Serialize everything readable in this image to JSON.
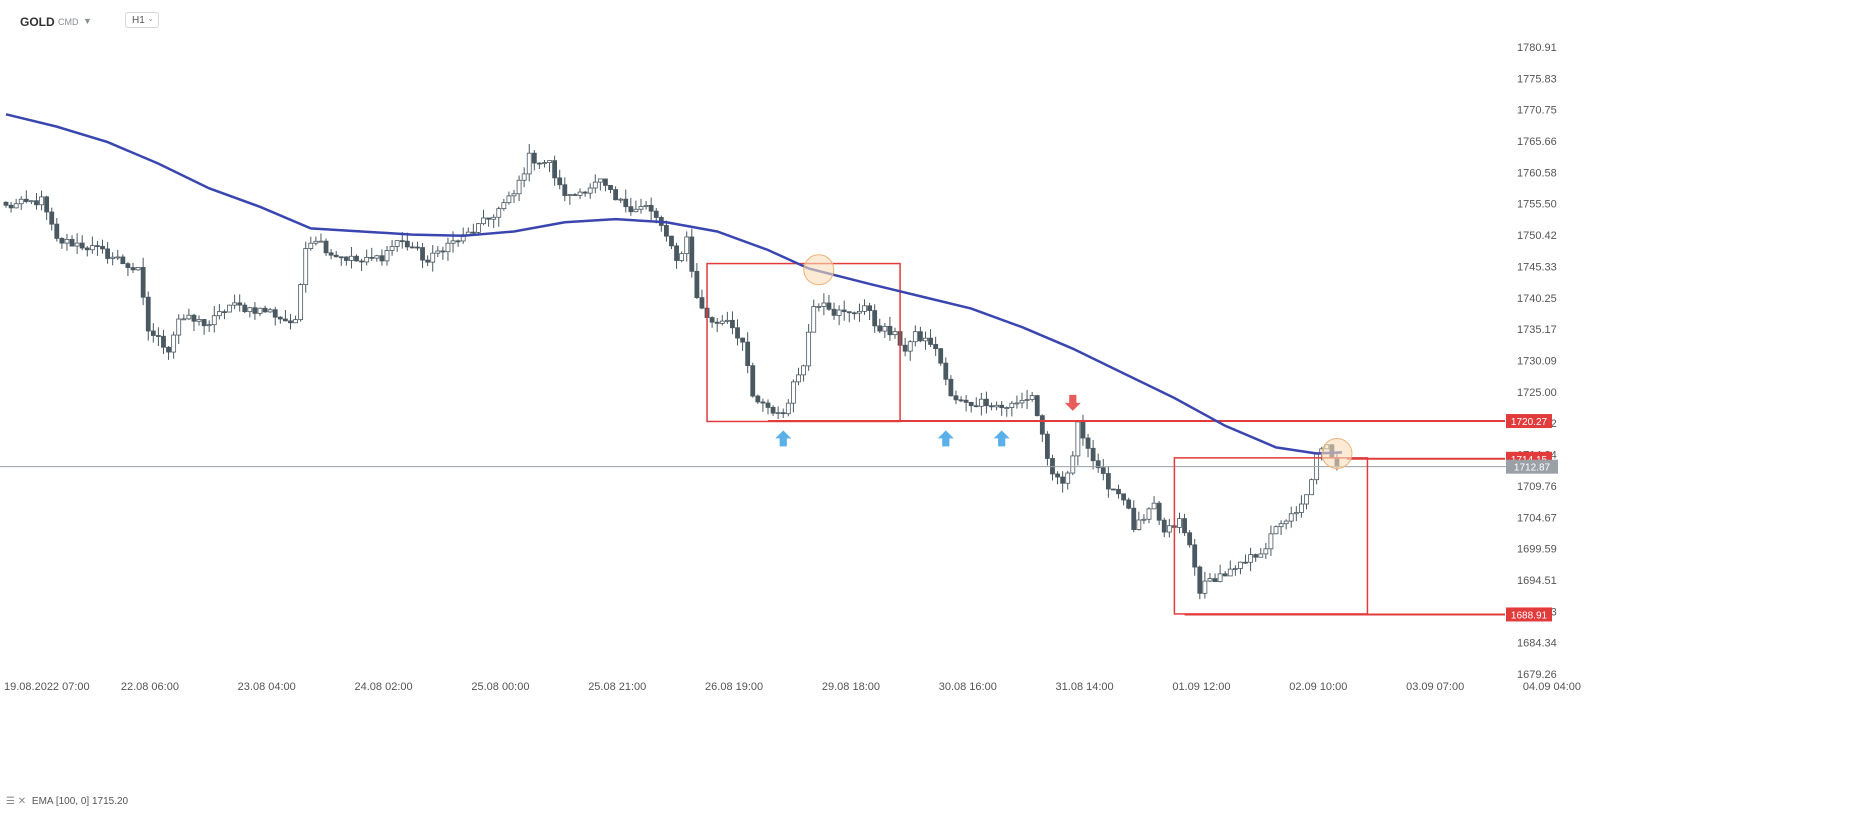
{
  "header": {
    "symbol": "GOLD",
    "market": "CMD",
    "timeframe": "H1"
  },
  "indicator_legend": {
    "label": "EMA",
    "params": "[100, 0]",
    "value": "1715.20"
  },
  "chart_data": {
    "type": "candlestick",
    "ylim": [
      1678.0,
      1782.5
    ],
    "y_ticks": [
      "1780.91",
      "1775.83",
      "1770.75",
      "1765.66",
      "1760.58",
      "1755.50",
      "1750.42",
      "1745.33",
      "1740.25",
      "1735.17",
      "1730.09",
      "1725.00",
      "1719.92",
      "1714.84",
      "1709.76",
      "1704.67",
      "1699.59",
      "1694.51",
      "1689.43",
      "1684.34",
      "1679.26"
    ],
    "x_ticks": [
      "19.08.2022  07:00",
      "22.08  06:00",
      "23.08  04:00",
      "24.08  02:00",
      "25.08  00:00",
      "25.08  21:00",
      "26.08  19:00",
      "29.08  18:00",
      "30.08  16:00",
      "31.08  14:00",
      "01.09  12:00",
      "02.09  10:00",
      "03.09  07:00",
      "04.09  04:00"
    ],
    "x_tick_index": [
      0,
      23,
      46,
      69,
      92,
      115,
      138,
      161,
      184,
      207,
      230,
      253,
      276,
      299
    ],
    "waypoints": [
      [
        0,
        1755.0
      ],
      [
        7,
        1756.0
      ],
      [
        10,
        1749.5
      ],
      [
        14,
        1749.0
      ],
      [
        18,
        1748.0
      ],
      [
        22,
        1746.5
      ],
      [
        26,
        1744.5
      ],
      [
        28,
        1735.0
      ],
      [
        32,
        1732.0
      ],
      [
        34,
        1737.0
      ],
      [
        40,
        1736.0
      ],
      [
        44,
        1739.0
      ],
      [
        52,
        1738.0
      ],
      [
        54,
        1737.0
      ],
      [
        57,
        1736.0
      ],
      [
        59,
        1749.0
      ],
      [
        61,
        1750.0
      ],
      [
        64,
        1747.5
      ],
      [
        70,
        1746.0
      ],
      [
        74,
        1747.0
      ],
      [
        77,
        1749.5
      ],
      [
        80,
        1748.5
      ],
      [
        83,
        1746.0
      ],
      [
        86,
        1748.5
      ],
      [
        90,
        1750.0
      ],
      [
        95,
        1753.0
      ],
      [
        100,
        1757.0
      ],
      [
        103,
        1763.0
      ],
      [
        107,
        1762.0
      ],
      [
        109,
        1758.0
      ],
      [
        111,
        1756.5
      ],
      [
        114,
        1758.0
      ],
      [
        117,
        1759.0
      ],
      [
        120,
        1756.0
      ],
      [
        123,
        1755.0
      ],
      [
        126,
        1755.0
      ],
      [
        129,
        1752.0
      ],
      [
        132,
        1746.0
      ],
      [
        134,
        1750.0
      ],
      [
        136,
        1740.0
      ],
      [
        139,
        1736.0
      ],
      [
        142,
        1737.0
      ],
      [
        145,
        1733.0
      ],
      [
        147,
        1724.0
      ],
      [
        150,
        1722.0
      ],
      [
        153,
        1721.5
      ],
      [
        155,
        1726.0
      ],
      [
        157,
        1730.0
      ],
      [
        159,
        1739.0
      ],
      [
        161,
        1740.0
      ],
      [
        163,
        1738.0
      ],
      [
        166,
        1737.5
      ],
      [
        169,
        1739.0
      ],
      [
        171,
        1736.0
      ],
      [
        175,
        1734.0
      ],
      [
        177,
        1732.0
      ],
      [
        179,
        1734.0
      ],
      [
        182,
        1733.0
      ],
      [
        184,
        1730.0
      ],
      [
        186,
        1724.0
      ],
      [
        189,
        1723.0
      ],
      [
        193,
        1723.5
      ],
      [
        196,
        1722.5
      ],
      [
        199,
        1723.0
      ],
      [
        202,
        1724.5
      ],
      [
        204,
        1718.0
      ],
      [
        206,
        1711.0
      ],
      [
        208,
        1710.0
      ],
      [
        210,
        1714.0
      ],
      [
        211,
        1720.5
      ],
      [
        213,
        1716.0
      ],
      [
        215,
        1712.0
      ],
      [
        217,
        1710.0
      ],
      [
        220,
        1708.0
      ],
      [
        222,
        1703.0
      ],
      [
        224,
        1704.0
      ],
      [
        226,
        1706.5
      ],
      [
        228,
        1702.0
      ],
      [
        231,
        1704.0
      ],
      [
        233,
        1700.0
      ],
      [
        235,
        1693.0
      ],
      [
        238,
        1695.0
      ],
      [
        242,
        1696.0
      ],
      [
        245,
        1698.0
      ],
      [
        248,
        1700.0
      ],
      [
        251,
        1704.0
      ],
      [
        254,
        1705.0
      ],
      [
        256,
        1708.0
      ],
      [
        258,
        1714.5
      ],
      [
        260,
        1716.0
      ],
      [
        262,
        1713.5
      ]
    ],
    "ema": {
      "name": "EMA",
      "points": [
        [
          0,
          1770.0
        ],
        [
          10,
          1768.0
        ],
        [
          20,
          1765.5
        ],
        [
          30,
          1762.0
        ],
        [
          40,
          1758.0
        ],
        [
          50,
          1755.0
        ],
        [
          60,
          1751.5
        ],
        [
          70,
          1751.0
        ],
        [
          80,
          1750.5
        ],
        [
          90,
          1750.3
        ],
        [
          100,
          1751.0
        ],
        [
          110,
          1752.5
        ],
        [
          120,
          1753.0
        ],
        [
          130,
          1752.5
        ],
        [
          140,
          1751.0
        ],
        [
          150,
          1748.0
        ],
        [
          158,
          1745.0
        ],
        [
          170,
          1742.5
        ],
        [
          180,
          1740.5
        ],
        [
          190,
          1738.5
        ],
        [
          200,
          1735.5
        ],
        [
          210,
          1732.0
        ],
        [
          220,
          1728.0
        ],
        [
          230,
          1724.0
        ],
        [
          240,
          1719.5
        ],
        [
          250,
          1716.0
        ],
        [
          258,
          1715.0
        ],
        [
          263,
          1715.2
        ]
      ]
    },
    "levels": [
      {
        "price": 1720.27,
        "label": "1720.27"
      },
      {
        "price": 1714.15,
        "label": "1714.15"
      },
      {
        "price": 1688.91,
        "label": "1688.91"
      }
    ],
    "current_price": {
      "price": 1712.87,
      "label": "1712.87"
    },
    "boxes": [
      {
        "x0": 138,
        "x1": 176,
        "y0": 1720.2,
        "y1": 1745.8
      },
      {
        "x0": 230,
        "x1": 268,
        "y0": 1689.0,
        "y1": 1714.3
      }
    ],
    "circles": [
      [
        160,
        1744.8
      ],
      [
        262,
        1715.0
      ]
    ],
    "up_arrows": [
      [
        153,
        1719.5
      ],
      [
        185,
        1719.5
      ],
      [
        196,
        1719.5
      ]
    ],
    "down_arrows": [
      [
        210,
        1721.5
      ]
    ],
    "colors": {
      "bull": "#ffffff",
      "bear": "#4a5861",
      "wick": "#4a5861",
      "ema": "#3a46b0",
      "level": "#e23b3b",
      "current": "#9aa0a6",
      "box": "#e23b3b",
      "circle_fill": "#f9dcb8",
      "circle_stroke": "#eab27a",
      "arrow_up": "#5ab0e8",
      "arrow_down": "#e85c5c"
    }
  }
}
